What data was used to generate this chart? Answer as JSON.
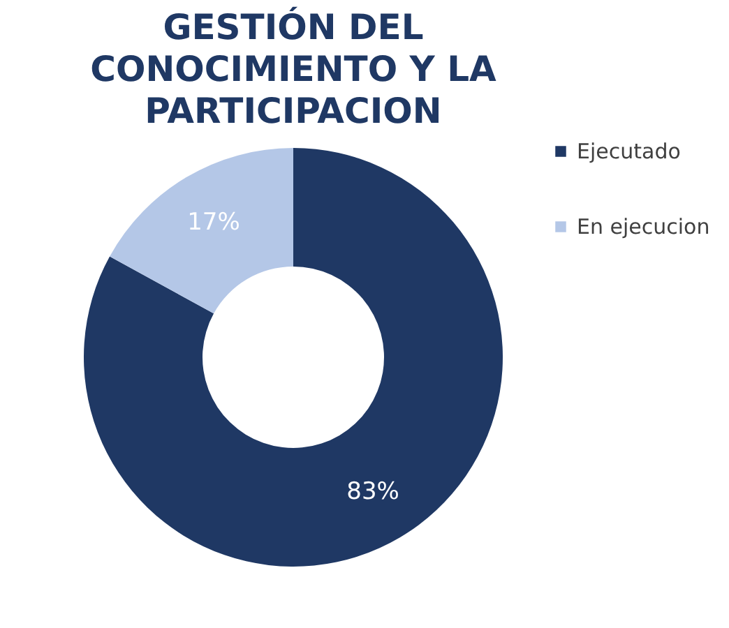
{
  "chart_data": {
    "type": "donut",
    "title": "GESTIÓN DEL CONOCIMIENTO Y LA PARTICIPACION",
    "categories": [
      "Ejecutado",
      "En ejecucion"
    ],
    "values": [
      83,
      17
    ],
    "colors": [
      "#1f3864",
      "#b4c7e7"
    ],
    "value_labels": [
      "83%",
      "17%"
    ],
    "legend": "right"
  }
}
